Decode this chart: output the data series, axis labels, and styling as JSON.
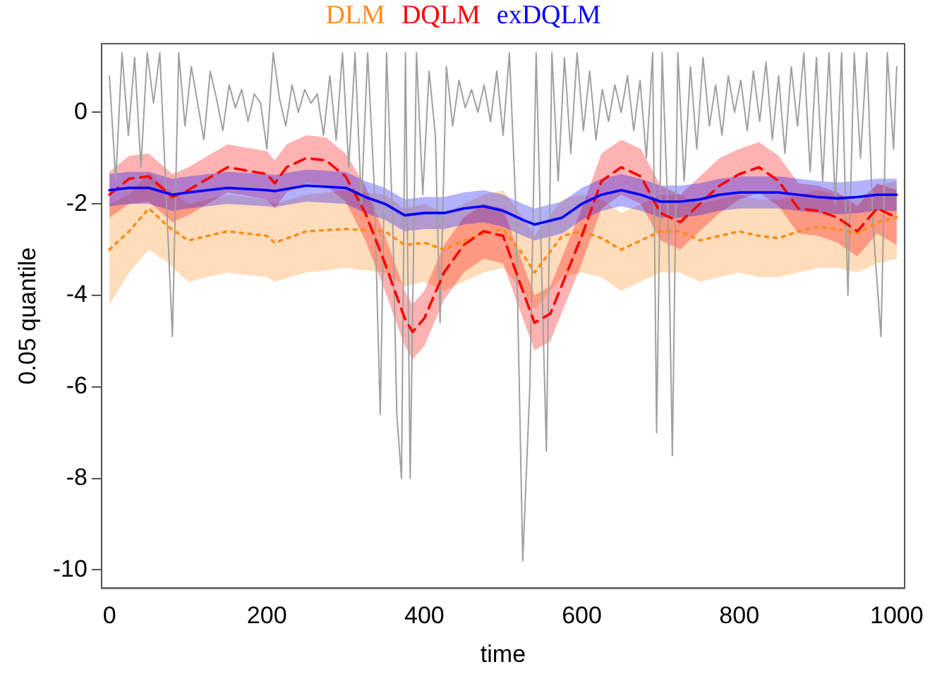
{
  "chart_data": {
    "type": "line",
    "xlabel": "time",
    "ylabel": "0.05 quantile",
    "xlim": [
      -10,
      1010
    ],
    "ylim": [
      -10.4,
      1.5
    ],
    "xticks": [
      0,
      200,
      400,
      600,
      800,
      1000
    ],
    "yticks": [
      -10,
      -8,
      -6,
      -4,
      -2,
      0
    ],
    "grid": false,
    "legend": "top",
    "marker": "none",
    "series": [
      {
        "color": "#a0a0a0",
        "line_style": "solid",
        "x": [
          0,
          8,
          16,
          24,
          32,
          40,
          48,
          56,
          64,
          72,
          80,
          88,
          96,
          104,
          112,
          120,
          128,
          136,
          144,
          152,
          160,
          168,
          176,
          184,
          192,
          200,
          208,
          216,
          224,
          232,
          240,
          248,
          256,
          264,
          272,
          280,
          288,
          296,
          304,
          312,
          320,
          328,
          336,
          344,
          352,
          360,
          365,
          371,
          376,
          382,
          390,
          398,
          406,
          414,
          420,
          428,
          436,
          444,
          452,
          460,
          468,
          476,
          484,
          492,
          500,
          508,
          516,
          525,
          534,
          542,
          548,
          555,
          562,
          570,
          578,
          586,
          594,
          602,
          610,
          618,
          626,
          634,
          642,
          650,
          658,
          666,
          674,
          682,
          690,
          695,
          702,
          710,
          715,
          722,
          730,
          738,
          746,
          754,
          762,
          770,
          778,
          786,
          794,
          802,
          810,
          818,
          826,
          834,
          842,
          850,
          858,
          866,
          874,
          882,
          890,
          898,
          906,
          914,
          922,
          930,
          938,
          946,
          954,
          962,
          970,
          980,
          988,
          996,
          1000
        ],
        "values": [
          0.8,
          -1.5,
          1.3,
          -0.5,
          1.2,
          -1.2,
          1.3,
          0.2,
          1.3,
          -1.8,
          -4.9,
          1.3,
          -0.3,
          1.0,
          0.2,
          -0.6,
          0.9,
          0.3,
          -0.4,
          0.6,
          0.1,
          0.5,
          -0.2,
          0.4,
          0.2,
          -0.8,
          1.3,
          0.3,
          -0.3,
          0.6,
          0.0,
          0.5,
          0.2,
          0.4,
          -0.5,
          0.8,
          -0.6,
          1.3,
          -1.2,
          1.3,
          -2.0,
          1.3,
          -1.5,
          -6.6,
          1.3,
          -2.5,
          -6.6,
          -8.0,
          1.3,
          -8.0,
          1.3,
          -1.8,
          0.9,
          -0.5,
          -4.6,
          1.0,
          -0.3,
          0.7,
          0.1,
          0.5,
          0.0,
          0.6,
          -0.2,
          0.9,
          -0.5,
          1.3,
          -2.0,
          -9.8,
          -6.0,
          1.3,
          -2.8,
          -7.4,
          1.3,
          -1.5,
          1.2,
          -0.9,
          1.3,
          -0.4,
          0.9,
          -0.6,
          0.5,
          -0.2,
          0.6,
          0.0,
          0.8,
          -0.4,
          0.7,
          -1.0,
          1.3,
          -7.0,
          1.3,
          -2.5,
          -7.5,
          1.3,
          -1.5,
          1.0,
          -0.8,
          1.2,
          -0.3,
          0.6,
          -0.5,
          0.8,
          0.0,
          0.7,
          -0.4,
          0.9,
          -0.2,
          1.1,
          -0.6,
          0.8,
          -0.9,
          1.0,
          -0.3,
          1.3,
          -1.3,
          1.2,
          -1.5,
          1.3,
          -2.0,
          1.3,
          -4.0,
          1.3,
          -1.0,
          1.3,
          -2.5,
          -4.9,
          1.3,
          -0.8,
          1.0
        ]
      },
      {
        "name": "DLM",
        "color": "#ff8c1a",
        "line_style": "dotted",
        "x": [
          0,
          25,
          50,
          75,
          100,
          150,
          200,
          210,
          250,
          300,
          350,
          375,
          400,
          425,
          450,
          475,
          500,
          525,
          540,
          575,
          600,
          625,
          650,
          675,
          700,
          725,
          750,
          775,
          800,
          825,
          850,
          875,
          900,
          925,
          950,
          975,
          1000
        ],
        "values": [
          -3.0,
          -2.6,
          -2.1,
          -2.5,
          -2.8,
          -2.6,
          -2.7,
          -2.85,
          -2.6,
          -2.55,
          -2.6,
          -2.9,
          -2.85,
          -3.0,
          -2.8,
          -2.65,
          -2.55,
          -3.1,
          -3.5,
          -2.7,
          -2.6,
          -2.75,
          -3.0,
          -2.8,
          -2.6,
          -2.6,
          -2.8,
          -2.7,
          -2.6,
          -2.7,
          -2.75,
          -2.6,
          -2.5,
          -2.55,
          -2.65,
          -2.4,
          -2.3
        ],
        "lower": [
          -4.2,
          -3.5,
          -3.0,
          -3.3,
          -3.7,
          -3.5,
          -3.6,
          -3.7,
          -3.5,
          -3.4,
          -3.5,
          -3.8,
          -3.7,
          -3.9,
          -3.7,
          -3.5,
          -3.4,
          -3.9,
          -4.3,
          -3.6,
          -3.5,
          -3.6,
          -3.9,
          -3.7,
          -3.5,
          -3.5,
          -3.7,
          -3.6,
          -3.5,
          -3.6,
          -3.6,
          -3.5,
          -3.4,
          -3.4,
          -3.5,
          -3.3,
          -3.2
        ],
        "upper": [
          -2.0,
          -1.8,
          -1.3,
          -1.7,
          -2.0,
          -1.8,
          -1.9,
          -2.0,
          -1.8,
          -1.7,
          -1.8,
          -2.1,
          -2.0,
          -2.2,
          -2.0,
          -1.8,
          -1.7,
          -2.3,
          -2.7,
          -1.9,
          -1.8,
          -1.9,
          -2.2,
          -2.0,
          -1.8,
          -1.8,
          -2.0,
          -1.9,
          -1.8,
          -1.9,
          -1.9,
          -1.8,
          -1.7,
          -1.8,
          -1.9,
          -1.6,
          -1.5
        ]
      },
      {
        "name": "DQLM",
        "color": "#ff0000",
        "line_style": "dashed",
        "x": [
          0,
          25,
          50,
          80,
          100,
          150,
          200,
          210,
          225,
          250,
          275,
          300,
          325,
          350,
          375,
          385,
          400,
          425,
          450,
          475,
          500,
          525,
          540,
          560,
          600,
          625,
          650,
          675,
          700,
          725,
          750,
          775,
          800,
          825,
          850,
          875,
          900,
          925,
          950,
          975,
          1000
        ],
        "values": [
          -1.8,
          -1.45,
          -1.4,
          -1.85,
          -1.7,
          -1.2,
          -1.35,
          -1.55,
          -1.2,
          -1.0,
          -1.05,
          -1.4,
          -2.2,
          -3.3,
          -4.5,
          -4.8,
          -4.5,
          -3.5,
          -2.9,
          -2.6,
          -2.7,
          -3.9,
          -4.6,
          -4.4,
          -2.7,
          -1.5,
          -1.2,
          -1.4,
          -2.2,
          -2.4,
          -2.0,
          -1.6,
          -1.35,
          -1.2,
          -1.5,
          -2.1,
          -2.15,
          -2.3,
          -2.6,
          -2.1,
          -2.3
        ],
        "lower": [
          -2.3,
          -2.0,
          -1.95,
          -2.4,
          -2.25,
          -1.75,
          -1.9,
          -2.1,
          -1.75,
          -1.55,
          -1.6,
          -1.95,
          -2.8,
          -3.9,
          -5.1,
          -5.4,
          -5.1,
          -4.1,
          -3.5,
          -3.2,
          -3.3,
          -4.5,
          -5.2,
          -5.0,
          -3.3,
          -2.1,
          -1.8,
          -2.0,
          -2.8,
          -3.0,
          -2.6,
          -2.2,
          -1.9,
          -1.75,
          -2.05,
          -2.65,
          -2.7,
          -2.85,
          -3.15,
          -2.65,
          -2.9
        ],
        "upper": [
          -1.3,
          -0.95,
          -0.9,
          -1.35,
          -1.2,
          -0.7,
          -0.85,
          -1.05,
          -0.7,
          -0.5,
          -0.55,
          -0.9,
          -1.6,
          -2.7,
          -3.9,
          -4.2,
          -3.9,
          -2.9,
          -2.3,
          -2.0,
          -2.1,
          -3.3,
          -4.0,
          -3.8,
          -2.1,
          -0.9,
          -0.6,
          -0.8,
          -1.6,
          -1.8,
          -1.4,
          -1.0,
          -0.8,
          -0.65,
          -0.95,
          -1.55,
          -1.6,
          -1.75,
          -2.05,
          -1.55,
          -1.7
        ]
      },
      {
        "name": "exDQLM",
        "color": "#0000ff",
        "line_style": "solid",
        "x": [
          0,
          25,
          50,
          80,
          100,
          150,
          200,
          210,
          250,
          300,
          325,
          350,
          375,
          400,
          425,
          450,
          475,
          500,
          525,
          540,
          575,
          600,
          625,
          650,
          675,
          700,
          725,
          750,
          775,
          800,
          825,
          850,
          875,
          900,
          925,
          950,
          975,
          1000
        ],
        "values": [
          -1.7,
          -1.65,
          -1.65,
          -1.8,
          -1.75,
          -1.65,
          -1.7,
          -1.72,
          -1.6,
          -1.65,
          -1.85,
          -2.0,
          -2.25,
          -2.2,
          -2.2,
          -2.1,
          -2.05,
          -2.15,
          -2.35,
          -2.45,
          -2.3,
          -2.0,
          -1.8,
          -1.7,
          -1.8,
          -1.95,
          -1.95,
          -1.9,
          -1.8,
          -1.75,
          -1.75,
          -1.75,
          -1.8,
          -1.85,
          -1.88,
          -1.85,
          -1.8,
          -1.8
        ],
        "lower": [
          -2.05,
          -2.0,
          -2.0,
          -2.15,
          -2.1,
          -2.0,
          -2.05,
          -2.07,
          -1.95,
          -2.0,
          -2.2,
          -2.35,
          -2.6,
          -2.55,
          -2.55,
          -2.45,
          -2.4,
          -2.5,
          -2.7,
          -2.8,
          -2.65,
          -2.35,
          -2.15,
          -2.05,
          -2.15,
          -2.3,
          -2.3,
          -2.25,
          -2.15,
          -2.1,
          -2.1,
          -2.1,
          -2.15,
          -2.2,
          -2.23,
          -2.2,
          -2.15,
          -2.15
        ],
        "upper": [
          -1.35,
          -1.3,
          -1.3,
          -1.45,
          -1.4,
          -1.3,
          -1.35,
          -1.37,
          -1.25,
          -1.3,
          -1.5,
          -1.65,
          -1.9,
          -1.85,
          -1.85,
          -1.75,
          -1.7,
          -1.8,
          -2.0,
          -2.1,
          -1.95,
          -1.65,
          -1.45,
          -1.35,
          -1.45,
          -1.6,
          -1.6,
          -1.55,
          -1.45,
          -1.4,
          -1.4,
          -1.4,
          -1.45,
          -1.5,
          -1.53,
          -1.5,
          -1.45,
          -1.45
        ]
      }
    ]
  }
}
